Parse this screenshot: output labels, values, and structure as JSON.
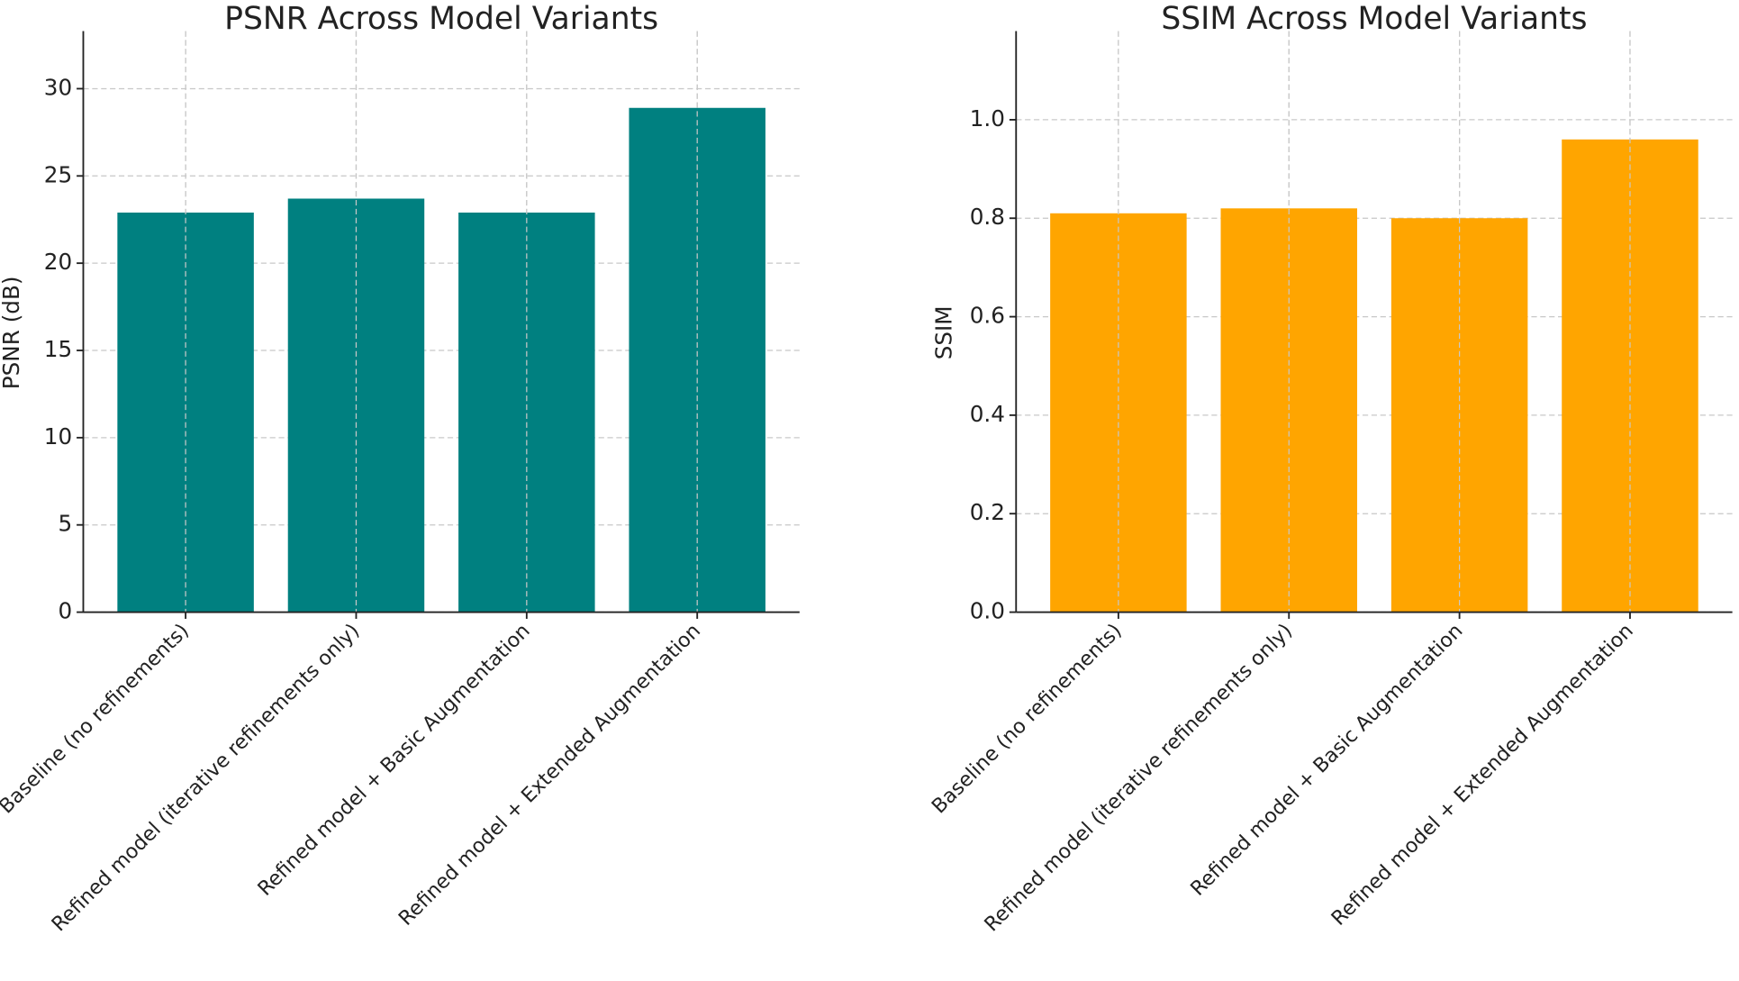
{
  "chart_data": [
    {
      "type": "bar",
      "title": "PSNR Across Model Variants",
      "y_label": "PSNR (dB)",
      "categories": [
        "Baseline (no refinements)",
        "Refined model (iterative refinements only)",
        "Refined model + Basic Augmentation",
        "Refined model + Extended Augmentation"
      ],
      "values": [
        22.9,
        23.7,
        22.9,
        28.9
      ],
      "color": "#008080",
      "ylim": [
        0,
        33.3
      ],
      "yticks": [
        0,
        5,
        10,
        15,
        20,
        25,
        30
      ],
      "grid": true
    },
    {
      "type": "bar",
      "title": "SSIM Across Model Variants",
      "y_label": "SSIM",
      "categories": [
        "Baseline (no refinements)",
        "Refined model (iterative refinements only)",
        "Refined model + Basic Augmentation",
        "Refined model + Extended Augmentation"
      ],
      "values": [
        0.81,
        0.82,
        0.8,
        0.96
      ],
      "color": "#ffa500",
      "ylim": [
        0,
        1.18
      ],
      "yticks": [
        {
          "value": 0,
          "label": "0.0"
        },
        0.2,
        0.4,
        0.6,
        0.8,
        {
          "value": 1,
          "label": "1.0"
        }
      ],
      "grid": true
    }
  ]
}
